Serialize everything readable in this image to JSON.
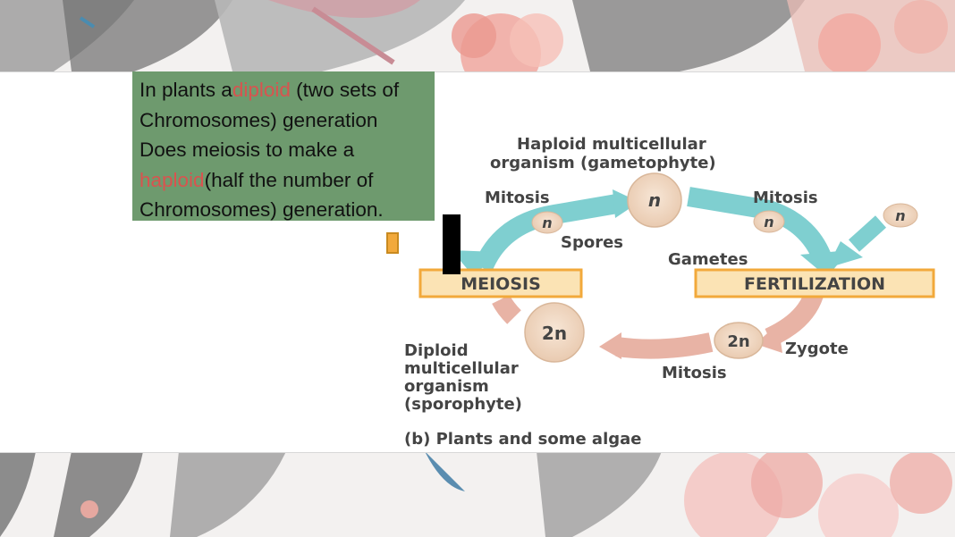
{
  "slide": {
    "callout": {
      "line1_pre": "In plants a",
      "line1_hl": "diploid",
      "line1_post": " (two sets of",
      "line2": "Chromosomes) generation",
      "line3": "Does meiosis to make a",
      "line4_hl": "haploid",
      "line4_post": "(half the number of",
      "line5": "Chromosomes) generation."
    }
  },
  "diagram": {
    "haploid_title_1": "Haploid multicellular",
    "haploid_title_2": "organism (gametophyte)",
    "mitosis_left": "Mitosis",
    "mitosis_right": "Mitosis",
    "mitosis_bottom": "Mitosis",
    "n_label": "n",
    "two_n_label": "2n",
    "spores": "Spores",
    "gametes": "Gametes",
    "meiosis": "MEIOSIS",
    "fertilization": "FERTILIZATION",
    "zygote": "Zygote",
    "diploid_1": "Diploid",
    "diploid_2": "multicellular",
    "diploid_3": "organism",
    "diploid_4": "(sporophyte)",
    "caption": "(b) Plants and some algae"
  },
  "colors": {
    "callout_bg": "#6e9a6e",
    "highlight": "#d9534f",
    "box_fill": "#fbe3b4",
    "box_border": "#f2a93b",
    "teal_arrow": "#7fcfd0",
    "pink_arrow": "#e8b3a5",
    "cell_fill": "#f3dcc8"
  }
}
